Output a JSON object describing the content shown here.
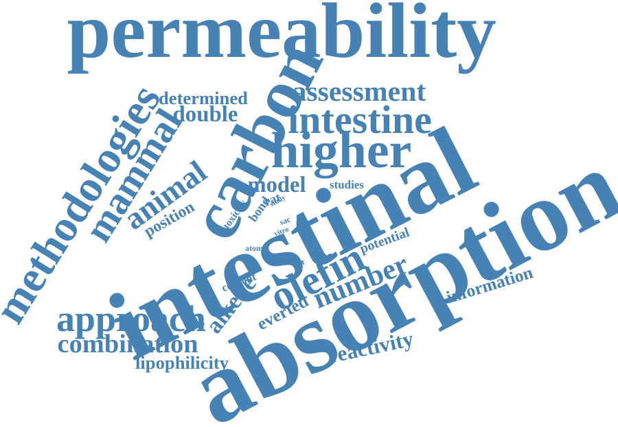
{
  "colors": {
    "word": "#4682b4",
    "background": "#ffffff"
  },
  "words": [
    {
      "id": "permeability",
      "text": "permeability"
    },
    {
      "id": "absorption",
      "text": "absorption"
    },
    {
      "id": "intestinal",
      "text": "intestinal"
    },
    {
      "id": "carbon",
      "text": "carbon"
    },
    {
      "id": "methodologies",
      "text": "methodologies"
    },
    {
      "id": "higher",
      "text": "higher"
    },
    {
      "id": "intestine",
      "text": "intestine"
    },
    {
      "id": "assessment",
      "text": "assessment"
    },
    {
      "id": "mammal",
      "text": "mammal"
    },
    {
      "id": "animal",
      "text": "animal"
    },
    {
      "id": "determined",
      "text": "determined"
    },
    {
      "id": "double",
      "text": "double"
    },
    {
      "id": "model",
      "text": "model"
    },
    {
      "id": "studies",
      "text": "studies"
    },
    {
      "id": "position",
      "text": "position"
    },
    {
      "id": "toxicity",
      "text": "toxicity"
    },
    {
      "id": "bond",
      "text": "bond"
    },
    {
      "id": "rat",
      "text": "rat"
    },
    {
      "id": "study",
      "text": "study"
    },
    {
      "id": "sac",
      "text": "sac"
    },
    {
      "id": "vitro",
      "text": "vitro"
    },
    {
      "id": "atom",
      "text": "atom"
    },
    {
      "id": "potential",
      "text": "potential"
    },
    {
      "id": "matrix",
      "text": "matrix"
    },
    {
      "id": "content",
      "text": "content"
    },
    {
      "id": "olefin",
      "text": "olefin"
    },
    {
      "id": "number",
      "text": "number"
    },
    {
      "id": "alkene",
      "text": "alkene"
    },
    {
      "id": "everted",
      "text": "everted"
    },
    {
      "id": "information",
      "text": "information"
    },
    {
      "id": "approach",
      "text": "approach"
    },
    {
      "id": "combination",
      "text": "combination"
    },
    {
      "id": "lipophilicity",
      "text": "lipophilicity"
    },
    {
      "id": "reactivity",
      "text": "reactivity"
    }
  ]
}
